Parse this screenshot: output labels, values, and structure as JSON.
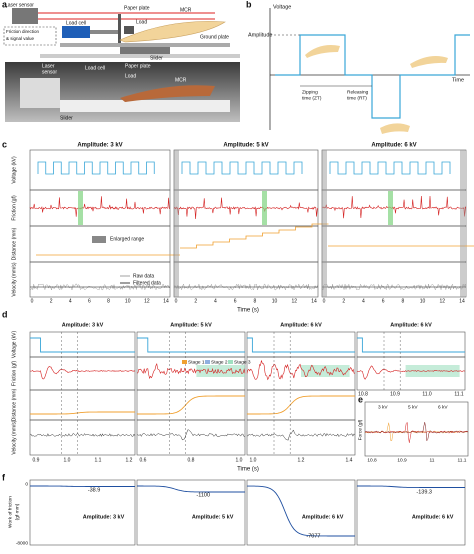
{
  "a": {
    "label": "a",
    "laser_sensor": "Laser sensor",
    "load_cell": "Load cell",
    "paper_plate": "Paper plate",
    "load": "Load",
    "mcr": "MCR",
    "ground_plate": "Ground plate",
    "slider": "Slider",
    "friction_note": [
      "Friction direction",
      "& signal value"
    ],
    "photo": {
      "laser_sensor": [
        "Laser",
        "sensor"
      ],
      "load_cell": "Load cell",
      "paper_plate": "Paper plate",
      "load": "Load",
      "mcr": "MCR",
      "slider": "Slider"
    }
  },
  "b": {
    "label": "b",
    "voltage": "Voltage",
    "amplitude": "Amplitude",
    "time": "Time",
    "zipping": [
      "Zipping",
      "time (ZT)"
    ],
    "releasing": [
      "Releasing",
      "time (RT)"
    ]
  },
  "c": {
    "label": "c",
    "titles": [
      "Amplitude: 3 kV",
      "Amplitude: 5 kV",
      "Amplitude: 6 kV"
    ],
    "y_labels": [
      "Voltage (kV)",
      "Friction (gf)",
      "Distance (mm)",
      "Velocity (mm/s)"
    ],
    "x_ticks": [
      "0",
      "2",
      "4",
      "6",
      "8",
      "10",
      "12",
      "14"
    ],
    "x_label": "Time (s)",
    "enlarged": "Enlarged range",
    "legend": [
      "Raw data",
      "Filtered data"
    ]
  },
  "d": {
    "label": "d",
    "titles": [
      "Amplitude: 3 kV",
      "Amplitude: 5 kV",
      "Amplitude: 6 kV",
      "Amplitude: 6 kV"
    ],
    "y_labels": [
      "Voltage (kV)",
      "Friction (gf)",
      "Distance (mm)",
      "Velocity (mm/s)"
    ],
    "x_ticks": [
      [
        "0.9",
        "1.0",
        "1.1",
        "1.2"
      ],
      [
        "0.6",
        "0.8",
        "1.0"
      ],
      [
        "1.0",
        "1.2",
        "1.4"
      ],
      [
        "10.8",
        "10.9",
        "11.0",
        "11.1"
      ]
    ],
    "x_label": "Time (s)",
    "legend": [
      "Stage 1",
      "Stage 2",
      "Stage 3"
    ]
  },
  "e": {
    "label": "e",
    "y_label": "Force (gf)",
    "legend": [
      "3 kV",
      "5 kV",
      "6 kV"
    ],
    "x_ticks": [
      "10.8",
      "10.9",
      "11",
      "11.1"
    ]
  },
  "f": {
    "label": "f",
    "y_label": [
      "Work of friction",
      "(gf·mm)"
    ],
    "y_ticks": [
      "0",
      "-8000"
    ],
    "titles": [
      "Amplitude: 3 kV",
      "Amplitude: 5 kV",
      "Amplitude: 6 kV",
      "Amplitude: 6 kV"
    ],
    "values": [
      "-38.9",
      "-1100",
      "-7077",
      "-139.3"
    ]
  }
}
